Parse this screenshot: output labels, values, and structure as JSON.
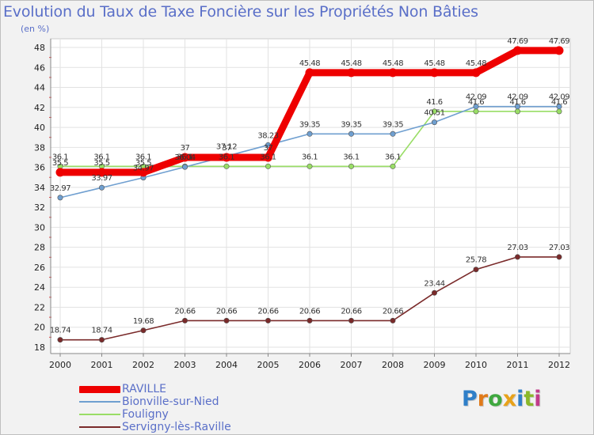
{
  "title": "Evolution du Taux de Taxe Foncière sur les Propriétés Non Bâties",
  "subtitle": "(en %)",
  "brand": {
    "text": "Proxiti",
    "letters": [
      {
        "ch": "P",
        "color": "#2f7fc8"
      },
      {
        "ch": "r",
        "color": "#e07a1a"
      },
      {
        "ch": "o",
        "color": "#3fa83f"
      },
      {
        "ch": "x",
        "color": "#e8a21a"
      },
      {
        "ch": "i",
        "color": "#2f7fc8"
      },
      {
        "ch": "t",
        "color": "#8ab82a"
      },
      {
        "ch": "i",
        "color": "#c23b8a"
      }
    ]
  },
  "chart_data": {
    "type": "line",
    "title": "Evolution du Taux de Taxe Foncière sur les Propriétés Non Bâties",
    "ylabel": "(en %)",
    "xlabel": "",
    "x": [
      "2000",
      "2001",
      "2002",
      "2003",
      "2004",
      "2005",
      "2006",
      "2007",
      "2008",
      "2009",
      "2010",
      "2011",
      "2012"
    ],
    "ylim": [
      18,
      48
    ],
    "yticks": [
      "18",
      "20",
      "22",
      "24",
      "26",
      "28",
      "30",
      "32",
      "34",
      "36",
      "38",
      "40",
      "42",
      "44",
      "46",
      "48"
    ],
    "grid": true,
    "legend_position": "bottom-left",
    "series": [
      {
        "name": "RAVILLE",
        "color": "#ee0000",
        "values": [
          35.5,
          35.5,
          35.5,
          37,
          37,
          37,
          45.48,
          45.48,
          45.48,
          45.48,
          45.48,
          47.69,
          47.69
        ],
        "labels": [
          "35.5",
          "35.5",
          "35.5",
          "37",
          "37",
          "37",
          "45.48",
          "45.48",
          "45.48",
          "45.48",
          "45.48",
          "47.69",
          "47.69"
        ]
      },
      {
        "name": "Bionville-sur-Nied",
        "color": "#6f9fd0",
        "values": [
          32.97,
          33.97,
          34.97,
          36.04,
          37.12,
          38.23,
          39.35,
          39.35,
          39.35,
          40.51,
          42.09,
          42.09,
          42.09
        ],
        "labels": [
          "32.97",
          "33.97",
          "34.97",
          "36.04",
          "37.12",
          "38.23",
          "39.35",
          "39.35",
          "39.35",
          "40.51",
          "42.09",
          "42.09",
          "42.09"
        ]
      },
      {
        "name": "Fouligny",
        "color": "#99dd66",
        "values": [
          36.1,
          36.1,
          36.1,
          36.1,
          36.1,
          36.1,
          36.1,
          36.1,
          36.1,
          41.6,
          41.6,
          41.6,
          41.6
        ],
        "labels": [
          "36.1",
          "36.1",
          "36.1",
          "36.1",
          "36.1",
          "36.1",
          "36.1",
          "36.1",
          "36.1",
          "41.6",
          "41.6",
          "41.6",
          "41.6"
        ]
      },
      {
        "name": "Servigny-lès-Raville",
        "color": "#7a2a2a",
        "values": [
          18.74,
          18.74,
          19.68,
          20.66,
          20.66,
          20.66,
          20.66,
          20.66,
          20.66,
          23.44,
          25.78,
          27.03,
          27.03
        ],
        "labels": [
          "18.74",
          "18.74",
          "19.68",
          "20.66",
          "20.66",
          "20.66",
          "20.66",
          "20.66",
          "20.66",
          "23.44",
          "25.78",
          "27.03",
          "27.03"
        ]
      }
    ]
  }
}
